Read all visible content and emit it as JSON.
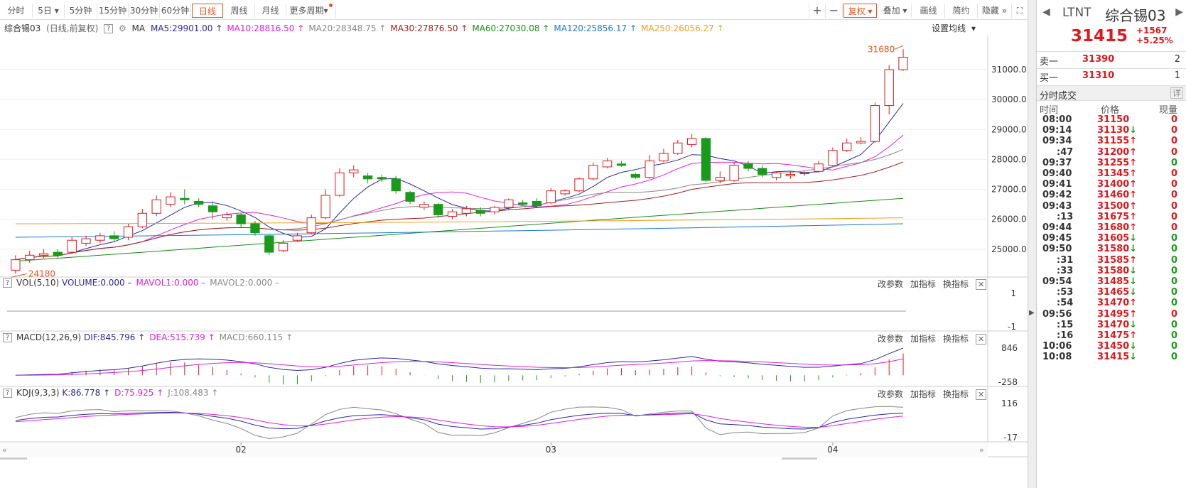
{
  "toolbar": {
    "periods": [
      "分时",
      "5日",
      "5分钟",
      "15分钟",
      "30分钟",
      "60分钟",
      "日线",
      "周线",
      "月线",
      "更多周期"
    ],
    "active_period": "日线",
    "plus": "+",
    "minus": "−",
    "fuquan": "复权",
    "diejia": "叠加",
    "huaxian": "画线",
    "jianyue": "简约",
    "yincang": "隐藏"
  },
  "legend": {
    "name": "综合锡03",
    "mode": "(日线,前复权)",
    "ma_label": "MA",
    "items": [
      {
        "text": "MA5:29901.00",
        "arrow": "↑",
        "color": "#2a2a9a"
      },
      {
        "text": "MA10:28816.50",
        "arrow": "↑",
        "color": "#e020e0"
      },
      {
        "text": "MA20:28348.75",
        "arrow": "↑",
        "color": "#888888"
      },
      {
        "text": "MA30:27876.50",
        "arrow": "↑",
        "color": "#a02020"
      },
      {
        "text": "MA60:27030.08",
        "arrow": "↑",
        "color": "#1a8a1a"
      },
      {
        "text": "MA120:25856.17",
        "arrow": "↑",
        "color": "#1a7ad0"
      },
      {
        "text": "MA250:26056.27",
        "arrow": "↑",
        "color": "#f0a020"
      }
    ],
    "settings": "设置均线"
  },
  "price_axis": [
    "31000.0",
    "30000.0",
    "29000.0",
    "28000.0",
    "27000.0",
    "26000.0",
    "25000.0"
  ],
  "annotations": {
    "high": "31680",
    "low": "24180"
  },
  "vol_panel": {
    "title": "VOL(5,10)",
    "items": [
      {
        "text": "VOLUME:0.000",
        "suffix": "–",
        "color": "#2a2a9a"
      },
      {
        "text": "MAVOL1:0.000",
        "suffix": "–",
        "color": "#e020e0"
      },
      {
        "text": "MAVOL2:0.000",
        "suffix": "–",
        "color": "#888888"
      }
    ],
    "axis": [
      "1",
      "-1"
    ]
  },
  "macd_panel": {
    "title": "MACD(12,26,9)",
    "items": [
      {
        "text": "DIF:845.796",
        "suffix": "↑",
        "color": "#2a2a9a"
      },
      {
        "text": "DEA:515.739",
        "suffix": "↑",
        "color": "#e020e0"
      },
      {
        "text": "MACD:660.115",
        "suffix": "↑",
        "color": "#888888"
      }
    ],
    "axis": [
      "846",
      "-258"
    ]
  },
  "kdj_panel": {
    "title": "KDJ(9,3,3)",
    "items": [
      {
        "text": "K:86.778",
        "suffix": "↑",
        "color": "#2a2a9a"
      },
      {
        "text": "D:75.925",
        "suffix": "↑",
        "color": "#e020e0"
      },
      {
        "text": "J:108.483",
        "suffix": "↑",
        "color": "#888888"
      }
    ],
    "axis": [
      "116",
      "-17"
    ]
  },
  "panel_buttons": [
    "改参数",
    "加指标",
    "换指标"
  ],
  "x_axis": [
    "02",
    "03",
    "04"
  ],
  "quote": {
    "code": "LTNT",
    "name": "综合锡03",
    "price": "31415",
    "change": "+1567",
    "pct": "+5.25%",
    "sell_label": "卖一",
    "sell_price": "31390",
    "sell_vol": "2",
    "buy_label": "买一",
    "buy_price": "31310",
    "buy_vol": "1",
    "ticks_title": "分时成交",
    "detail": "详",
    "headers": [
      "时间",
      "价格",
      "现量"
    ]
  },
  "ticks": [
    {
      "t": "08:00",
      "p": "31150",
      "a": "",
      "v": "0",
      "vc": "up"
    },
    {
      "t": "09:14",
      "p": "31130",
      "a": "↓",
      "v": "0",
      "vc": "up"
    },
    {
      "t": "09:34",
      "p": "31155",
      "a": "↑",
      "v": "0",
      "vc": "up"
    },
    {
      "t": ":47",
      "p": "31200",
      "a": "↑",
      "v": "0",
      "vc": "up"
    },
    {
      "t": "09:37",
      "p": "31255",
      "a": "↑",
      "v": "0",
      "vc": "dn"
    },
    {
      "t": "09:40",
      "p": "31345",
      "a": "↑",
      "v": "0",
      "vc": "up"
    },
    {
      "t": "09:41",
      "p": "31400",
      "a": "↑",
      "v": "0",
      "vc": "up"
    },
    {
      "t": "09:42",
      "p": "31460",
      "a": "↑",
      "v": "0",
      "vc": "up"
    },
    {
      "t": "09:43",
      "p": "31500",
      "a": "↑",
      "v": "0",
      "vc": "up"
    },
    {
      "t": ":13",
      "p": "31675",
      "a": "↑",
      "v": "0",
      "vc": "up"
    },
    {
      "t": "09:44",
      "p": "31680",
      "a": "↑",
      "v": "0",
      "vc": "up"
    },
    {
      "t": "09:45",
      "p": "31605",
      "a": "↓",
      "v": "0",
      "vc": "dn"
    },
    {
      "t": "09:50",
      "p": "31580",
      "a": "↓",
      "v": "0",
      "vc": "dn"
    },
    {
      "t": ":31",
      "p": "31585",
      "a": "↑",
      "v": "0",
      "vc": "dn"
    },
    {
      "t": ":33",
      "p": "31580",
      "a": "↓",
      "v": "0",
      "vc": "dn"
    },
    {
      "t": "09:54",
      "p": "31485",
      "a": "↓",
      "v": "0",
      "vc": "dn"
    },
    {
      "t": ":53",
      "p": "31465",
      "a": "↓",
      "v": "0",
      "vc": "dn"
    },
    {
      "t": ":54",
      "p": "31470",
      "a": "↑",
      "v": "0",
      "vc": "dn"
    },
    {
      "t": "09:56",
      "p": "31495",
      "a": "↑",
      "v": "0",
      "vc": "up"
    },
    {
      "t": ":15",
      "p": "31470",
      "a": "↓",
      "v": "0",
      "vc": "dn"
    },
    {
      "t": ":16",
      "p": "31475",
      "a": "↑",
      "v": "0",
      "vc": "dn"
    },
    {
      "t": "10:06",
      "p": "31450",
      "a": "↓",
      "v": "0",
      "vc": "dn"
    },
    {
      "t": "10:08",
      "p": "31415",
      "a": "↓",
      "v": "0",
      "vc": "dn"
    }
  ],
  "colors": {
    "up": "#e0181e",
    "down": "#1a9a1a",
    "accent": "#e8541e"
  },
  "chart_data": {
    "type": "candlestick",
    "price_range": [
      24000,
      32000
    ],
    "candles": [
      {
        "o": 24300,
        "c": 24650,
        "h": 24800,
        "l": 24180
      },
      {
        "o": 24650,
        "c": 24800,
        "h": 24950,
        "l": 24550
      },
      {
        "o": 24800,
        "c": 24850,
        "h": 25000,
        "l": 24700
      },
      {
        "o": 24900,
        "c": 24800,
        "h": 25000,
        "l": 24700
      },
      {
        "o": 24900,
        "c": 25300,
        "h": 25400,
        "l": 24850
      },
      {
        "o": 25200,
        "c": 25350,
        "h": 25450,
        "l": 25100
      },
      {
        "o": 25300,
        "c": 25450,
        "h": 25550,
        "l": 25200
      },
      {
        "o": 25450,
        "c": 25350,
        "h": 25600,
        "l": 25250
      },
      {
        "o": 25400,
        "c": 25750,
        "h": 25850,
        "l": 25300
      },
      {
        "o": 25750,
        "c": 26200,
        "h": 26350,
        "l": 25700
      },
      {
        "o": 26200,
        "c": 26650,
        "h": 26800,
        "l": 26100
      },
      {
        "o": 26500,
        "c": 26750,
        "h": 26900,
        "l": 26400
      },
      {
        "o": 26700,
        "c": 26650,
        "h": 27000,
        "l": 26500
      },
      {
        "o": 26600,
        "c": 26500,
        "h": 26700,
        "l": 26400
      },
      {
        "o": 26450,
        "c": 26250,
        "h": 26600,
        "l": 26000
      },
      {
        "o": 26050,
        "c": 26150,
        "h": 26250,
        "l": 25950
      },
      {
        "o": 26150,
        "c": 25850,
        "h": 26200,
        "l": 25750
      },
      {
        "o": 25850,
        "c": 25550,
        "h": 25950,
        "l": 25450
      },
      {
        "o": 25450,
        "c": 24900,
        "h": 25500,
        "l": 24800
      },
      {
        "o": 24950,
        "c": 25200,
        "h": 25300,
        "l": 24900
      },
      {
        "o": 25300,
        "c": 25450,
        "h": 25550,
        "l": 25250
      },
      {
        "o": 25550,
        "c": 26050,
        "h": 26150,
        "l": 25500
      },
      {
        "o": 26050,
        "c": 26800,
        "h": 27000,
        "l": 26000
      },
      {
        "o": 26800,
        "c": 27550,
        "h": 27700,
        "l": 26750
      },
      {
        "o": 27550,
        "c": 27650,
        "h": 27800,
        "l": 27400
      },
      {
        "o": 27450,
        "c": 27350,
        "h": 27550,
        "l": 27200
      },
      {
        "o": 27400,
        "c": 27350,
        "h": 27500,
        "l": 27250
      },
      {
        "o": 27350,
        "c": 26950,
        "h": 27450,
        "l": 26850
      },
      {
        "o": 26900,
        "c": 26600,
        "h": 26950,
        "l": 26500
      },
      {
        "o": 26400,
        "c": 26500,
        "h": 26600,
        "l": 26300
      },
      {
        "o": 26500,
        "c": 26150,
        "h": 26550,
        "l": 26050
      },
      {
        "o": 26100,
        "c": 26250,
        "h": 26350,
        "l": 26000
      },
      {
        "o": 26200,
        "c": 26350,
        "h": 26450,
        "l": 26100
      },
      {
        "o": 26300,
        "c": 26200,
        "h": 26400,
        "l": 26100
      },
      {
        "o": 26250,
        "c": 26400,
        "h": 26450,
        "l": 26150
      },
      {
        "o": 26400,
        "c": 26650,
        "h": 26700,
        "l": 26300
      },
      {
        "o": 26550,
        "c": 26500,
        "h": 26650,
        "l": 26450
      },
      {
        "o": 26600,
        "c": 26450,
        "h": 26700,
        "l": 26400
      },
      {
        "o": 26550,
        "c": 26950,
        "h": 27050,
        "l": 26500
      },
      {
        "o": 26850,
        "c": 26950,
        "h": 27000,
        "l": 26800
      },
      {
        "o": 26950,
        "c": 27350,
        "h": 27400,
        "l": 26900
      },
      {
        "o": 27350,
        "c": 27800,
        "h": 27900,
        "l": 27300
      },
      {
        "o": 27750,
        "c": 27950,
        "h": 28050,
        "l": 27700
      },
      {
        "o": 27850,
        "c": 27800,
        "h": 27950,
        "l": 27750
      },
      {
        "o": 27500,
        "c": 27400,
        "h": 27550,
        "l": 27350
      },
      {
        "o": 27400,
        "c": 27950,
        "h": 28150,
        "l": 27350
      },
      {
        "o": 27950,
        "c": 28200,
        "h": 28350,
        "l": 27900
      },
      {
        "o": 28200,
        "c": 28550,
        "h": 28650,
        "l": 28150
      },
      {
        "o": 28500,
        "c": 28700,
        "h": 28850,
        "l": 28400
      },
      {
        "o": 28700,
        "c": 27300,
        "h": 28750,
        "l": 27250
      },
      {
        "o": 27300,
        "c": 27400,
        "h": 27600,
        "l": 27200
      },
      {
        "o": 27300,
        "c": 27800,
        "h": 27900,
        "l": 27250
      },
      {
        "o": 27850,
        "c": 27700,
        "h": 27950,
        "l": 27600
      },
      {
        "o": 27700,
        "c": 27500,
        "h": 27800,
        "l": 27400
      },
      {
        "o": 27400,
        "c": 27550,
        "h": 27600,
        "l": 27300
      },
      {
        "o": 27450,
        "c": 27500,
        "h": 27600,
        "l": 27350
      },
      {
        "o": 27550,
        "c": 27550,
        "h": 27600,
        "l": 27450
      },
      {
        "o": 27600,
        "c": 27850,
        "h": 27950,
        "l": 27550
      },
      {
        "o": 27800,
        "c": 28300,
        "h": 28400,
        "l": 27750
      },
      {
        "o": 28300,
        "c": 28550,
        "h": 28700,
        "l": 28250
      },
      {
        "o": 28550,
        "c": 28600,
        "h": 28750,
        "l": 28500
      },
      {
        "o": 28600,
        "c": 29800,
        "h": 29900,
        "l": 28550
      },
      {
        "o": 29800,
        "c": 31000,
        "h": 31150,
        "l": 29500
      },
      {
        "o": 31000,
        "c": 31415,
        "h": 31680,
        "l": 30950
      }
    ]
  }
}
